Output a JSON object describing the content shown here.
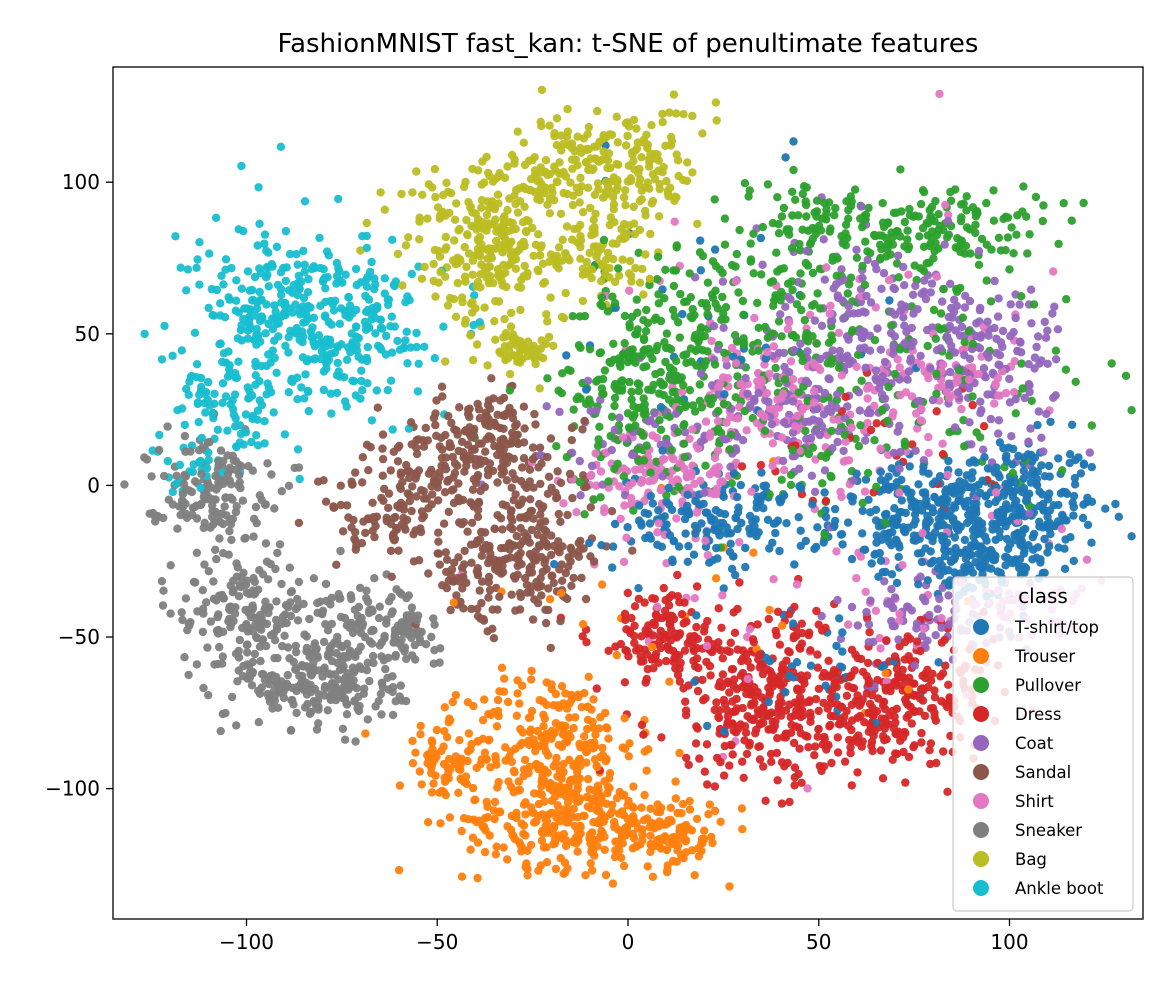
{
  "chart_data": {
    "type": "scatter",
    "title": "FashionMNIST fast_kan: t-SNE of penultimate features",
    "xlabel": "",
    "ylabel": "",
    "xlim": [
      -135,
      135
    ],
    "ylim": [
      -143,
      138
    ],
    "xticks": [
      -100,
      -50,
      0,
      50,
      100
    ],
    "yticks": [
      100,
      50,
      0,
      -50,
      -100
    ],
    "xtick_labels": [
      "−100",
      "−50",
      "0",
      "50",
      "100"
    ],
    "ytick_labels": [
      "100",
      "50",
      "0",
      "−50",
      "−100"
    ],
    "grid": false,
    "legend": {
      "title": "class",
      "placement": "lower-right",
      "entries": [
        "T-shirt/top",
        "Trouser",
        "Pullover",
        "Dress",
        "Coat",
        "Sandal",
        "Shirt",
        "Sneaker",
        "Bag",
        "Ankle boot"
      ]
    },
    "series": [
      {
        "name": "T-shirt/top",
        "color": "#1f77b4",
        "clusters": [
          {
            "cx": 100,
            "cy": -8,
            "sx": 12,
            "sy": 12,
            "n": 300
          },
          {
            "cx": 75,
            "cy": -10,
            "sx": 10,
            "sy": 8,
            "n": 170
          },
          {
            "cx": 25,
            "cy": -12,
            "sx": 14,
            "sy": 8,
            "n": 170
          },
          {
            "cx": 90,
            "cy": -28,
            "sx": 10,
            "sy": 5,
            "n": 90
          },
          {
            "cx": 50,
            "cy": -60,
            "sx": 14,
            "sy": 10,
            "n": 40
          },
          {
            "cx": 20,
            "cy": 40,
            "sx": 25,
            "sy": 30,
            "n": 40
          }
        ]
      },
      {
        "name": "Trouser",
        "color": "#ff7f0e",
        "clusters": [
          {
            "cx": -20,
            "cy": -85,
            "sx": 11,
            "sy": 12,
            "n": 240
          },
          {
            "cx": -15,
            "cy": -110,
            "sx": 14,
            "sy": 8,
            "n": 260
          },
          {
            "cx": -48,
            "cy": -92,
            "sx": 6,
            "sy": 6,
            "n": 70
          },
          {
            "cx": 10,
            "cy": -115,
            "sx": 8,
            "sy": 6,
            "n": 110
          },
          {
            "cx": 20,
            "cy": -45,
            "sx": 30,
            "sy": 20,
            "n": 25
          }
        ]
      },
      {
        "name": "Pullover",
        "color": "#2ca02c",
        "clusters": [
          {
            "cx": 5,
            "cy": 35,
            "sx": 12,
            "sy": 15,
            "n": 230
          },
          {
            "cx": 30,
            "cy": 55,
            "sx": 18,
            "sy": 14,
            "n": 160
          },
          {
            "cx": 85,
            "cy": 85,
            "sx": 12,
            "sy": 7,
            "n": 130
          },
          {
            "cx": 50,
            "cy": 85,
            "sx": 15,
            "sy": 8,
            "n": 110
          },
          {
            "cx": 80,
            "cy": 40,
            "sx": 22,
            "sy": 18,
            "n": 100
          },
          {
            "cx": 40,
            "cy": 10,
            "sx": 25,
            "sy": 12,
            "n": 80
          }
        ]
      },
      {
        "name": "Dress",
        "color": "#d62728",
        "clusters": [
          {
            "cx": 35,
            "cy": -70,
            "sx": 14,
            "sy": 14,
            "n": 300
          },
          {
            "cx": 10,
            "cy": -50,
            "sx": 10,
            "sy": 8,
            "n": 130
          },
          {
            "cx": 75,
            "cy": -70,
            "sx": 10,
            "sy": 10,
            "n": 180
          },
          {
            "cx": 55,
            "cy": -78,
            "sx": 10,
            "sy": 8,
            "n": 110
          },
          {
            "cx": 70,
            "cy": 10,
            "sx": 20,
            "sy": 15,
            "n": 30
          }
        ]
      },
      {
        "name": "Coat",
        "color": "#9467bd",
        "clusters": [
          {
            "cx": 65,
            "cy": 50,
            "sx": 16,
            "sy": 15,
            "n": 220
          },
          {
            "cx": 95,
            "cy": 40,
            "sx": 10,
            "sy": 14,
            "n": 130
          },
          {
            "cx": 45,
            "cy": 25,
            "sx": 12,
            "sy": 12,
            "n": 110
          },
          {
            "cx": 80,
            "cy": -45,
            "sx": 12,
            "sy": 8,
            "n": 90
          },
          {
            "cx": 5,
            "cy": 15,
            "sx": 12,
            "sy": 10,
            "n": 60
          }
        ]
      },
      {
        "name": "Sandal",
        "color": "#8c564b",
        "clusters": [
          {
            "cx": -40,
            "cy": 5,
            "sx": 14,
            "sy": 10,
            "n": 250
          },
          {
            "cx": -25,
            "cy": -25,
            "sx": 8,
            "sy": 10,
            "n": 170
          },
          {
            "cx": -40,
            "cy": -30,
            "sx": 6,
            "sy": 8,
            "n": 60
          },
          {
            "cx": -65,
            "cy": -10,
            "sx": 8,
            "sy": 8,
            "n": 80
          },
          {
            "cx": -35,
            "cy": 20,
            "sx": 6,
            "sy": 5,
            "n": 50
          }
        ]
      },
      {
        "name": "Shirt",
        "color": "#e377c2",
        "clusters": [
          {
            "cx": 10,
            "cy": 5,
            "sx": 12,
            "sy": 8,
            "n": 130
          },
          {
            "cx": 38,
            "cy": 30,
            "sx": 10,
            "sy": 8,
            "n": 100
          },
          {
            "cx": 80,
            "cy": 35,
            "sx": 10,
            "sy": 6,
            "n": 60
          },
          {
            "cx": 60,
            "cy": 30,
            "sx": 30,
            "sy": 30,
            "n": 90
          },
          {
            "cx": 50,
            "cy": -30,
            "sx": 30,
            "sy": 25,
            "n": 60
          },
          {
            "cx": 100,
            "cy": -40,
            "sx": 12,
            "sy": 6,
            "n": 40
          }
        ]
      },
      {
        "name": "Sneaker",
        "color": "#7f7f7f",
        "clusters": [
          {
            "cx": -80,
            "cy": -65,
            "sx": 11,
            "sy": 8,
            "n": 240
          },
          {
            "cx": -100,
            "cy": -40,
            "sx": 9,
            "sy": 10,
            "n": 170
          },
          {
            "cx": -110,
            "cy": 0,
            "sx": 8,
            "sy": 8,
            "n": 150
          },
          {
            "cx": -70,
            "cy": -45,
            "sx": 9,
            "sy": 7,
            "n": 100
          },
          {
            "cx": -58,
            "cy": -50,
            "sx": 4,
            "sy": 5,
            "n": 40
          }
        ]
      },
      {
        "name": "Bag",
        "color": "#bcbd22",
        "clusters": [
          {
            "cx": -35,
            "cy": 80,
            "sx": 12,
            "sy": 14,
            "n": 300
          },
          {
            "cx": -5,
            "cy": 105,
            "sx": 12,
            "sy": 10,
            "n": 220
          },
          {
            "cx": -28,
            "cy": 45,
            "sx": 4,
            "sy": 3,
            "n": 50
          },
          {
            "cx": -5,
            "cy": 75,
            "sx": 7,
            "sy": 8,
            "n": 70
          }
        ]
      },
      {
        "name": "Ankle boot",
        "color": "#17becf",
        "clusters": [
          {
            "cx": -85,
            "cy": 55,
            "sx": 14,
            "sy": 15,
            "n": 370
          },
          {
            "cx": -105,
            "cy": 25,
            "sx": 7,
            "sy": 8,
            "n": 80
          },
          {
            "cx": -115,
            "cy": 5,
            "sx": 5,
            "sy": 5,
            "n": 25
          },
          {
            "cx": -63,
            "cy": 50,
            "sx": 5,
            "sy": 8,
            "n": 40
          }
        ]
      }
    ]
  }
}
